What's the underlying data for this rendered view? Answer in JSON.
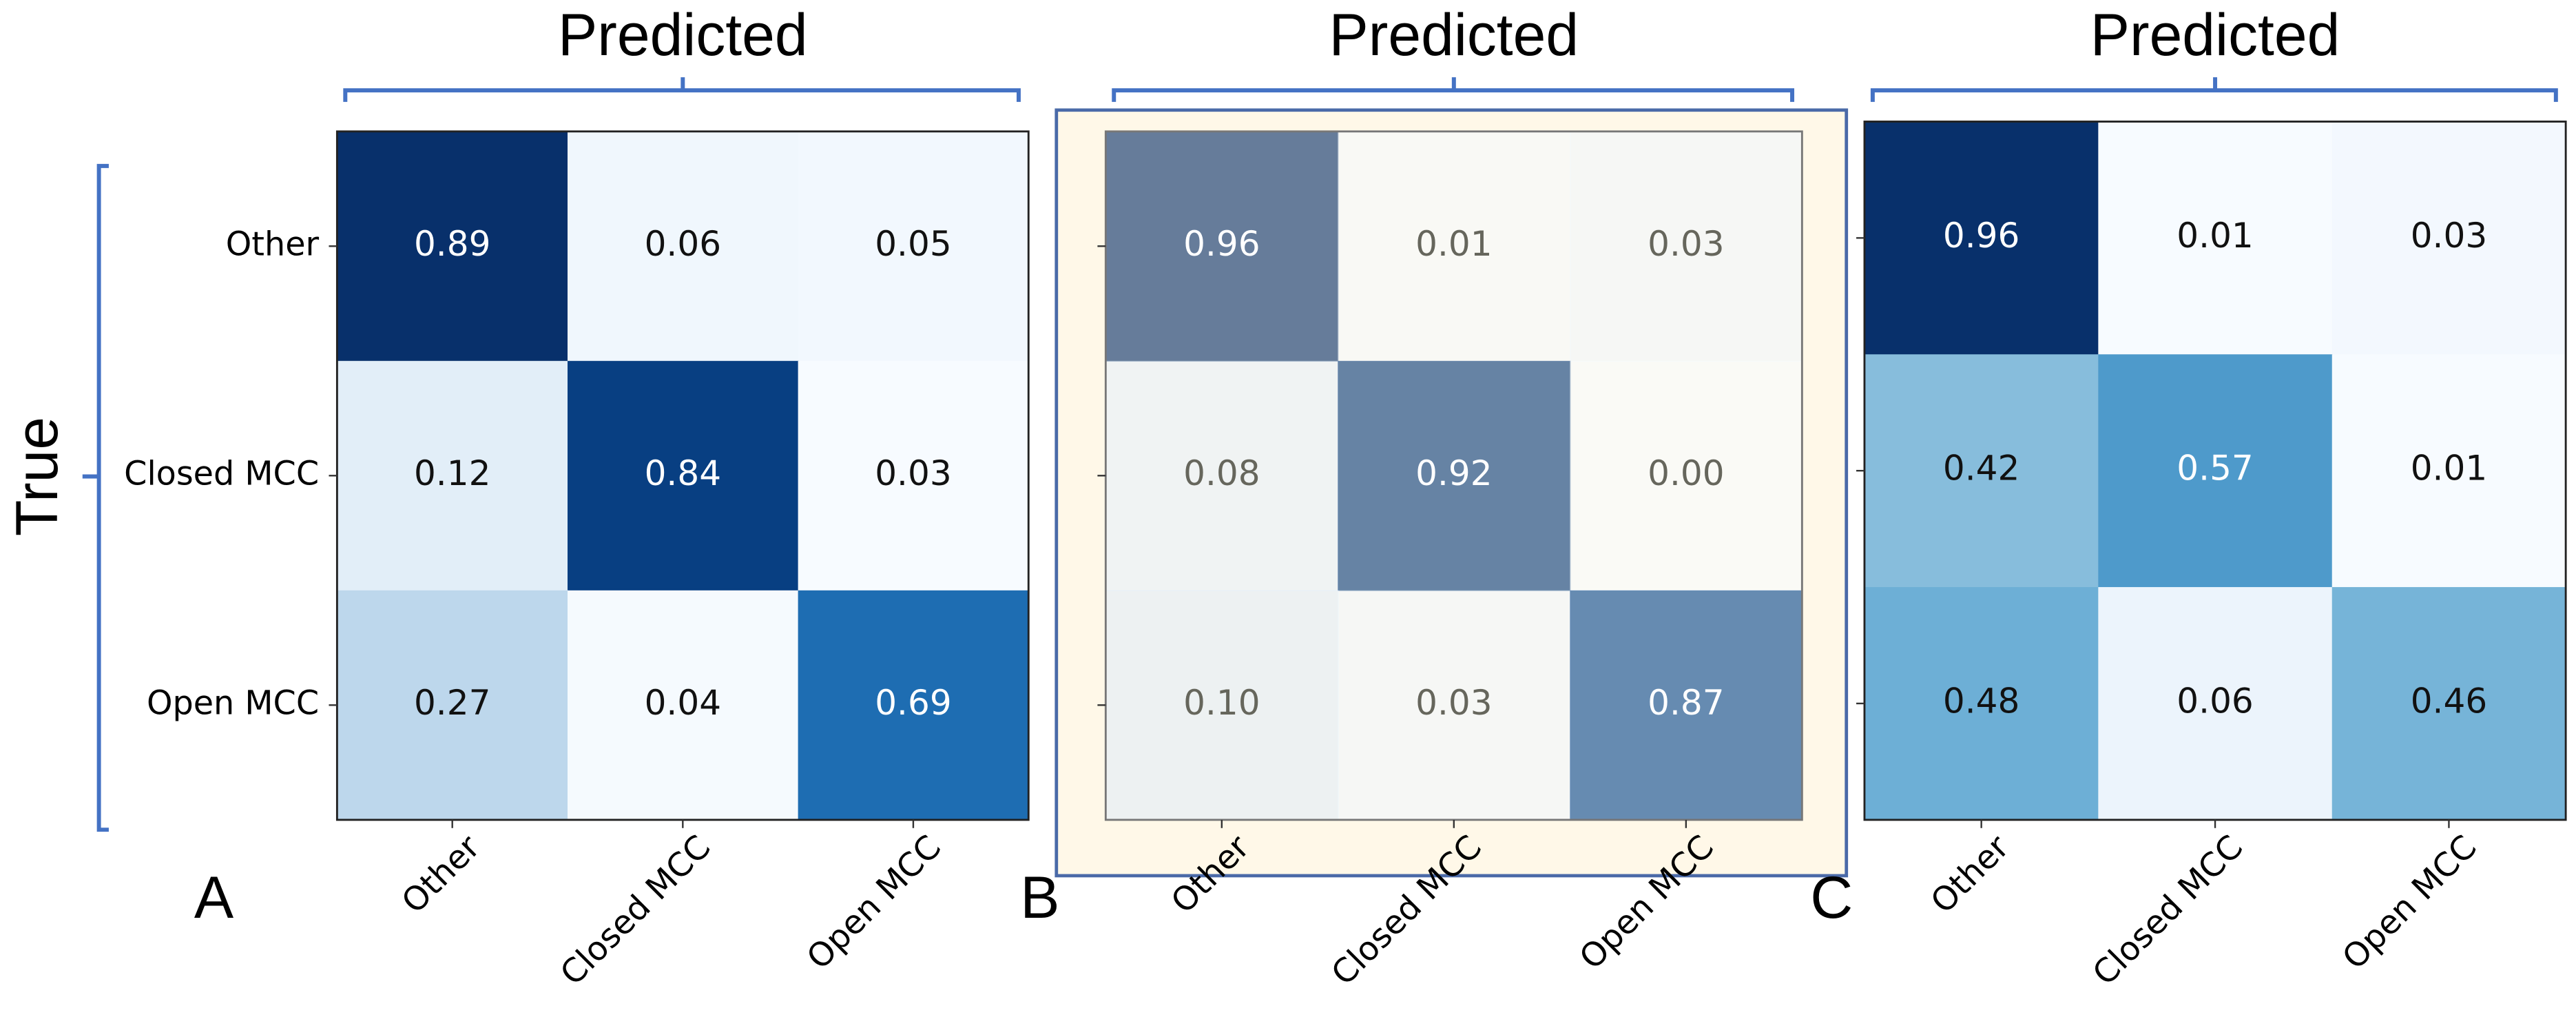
{
  "chart_data": [
    {
      "type": "heatmap",
      "title": "Predicted",
      "panel": "A",
      "ylabel": "True",
      "x_categories": [
        "Other",
        "Closed MCC",
        "Open MCC"
      ],
      "y_categories": [
        "Other",
        "Closed MCC",
        "Open MCC"
      ],
      "values": [
        [
          0.89,
          0.06,
          0.05
        ],
        [
          0.12,
          0.84,
          0.03
        ],
        [
          0.27,
          0.04,
          0.69
        ]
      ],
      "colormap": "Blues"
    },
    {
      "type": "heatmap",
      "title": "Predicted",
      "panel": "B",
      "highlight": true,
      "x_categories": [
        "Other",
        "Closed MCC",
        "Open MCC"
      ],
      "values": [
        [
          0.96,
          0.01,
          0.03
        ],
        [
          0.08,
          0.92,
          0
        ],
        [
          0.1,
          0.03,
          0.87
        ]
      ],
      "value_labels": [
        [
          "0.96",
          "0.01",
          "0.03"
        ],
        [
          "0.08",
          "0.92",
          "0.00"
        ],
        [
          "0.10",
          "0.03",
          "0.87"
        ]
      ],
      "colormap": "Blues"
    },
    {
      "type": "heatmap",
      "title": "Predicted",
      "panel": "C",
      "x_categories": [
        "Other",
        "Closed MCC",
        "Open MCC"
      ],
      "values": [
        [
          0.96,
          0.01,
          0.03
        ],
        [
          0.42,
          0.57,
          0.01
        ],
        [
          0.48,
          0.06,
          0.46
        ]
      ],
      "colormap": "Blues"
    }
  ]
}
